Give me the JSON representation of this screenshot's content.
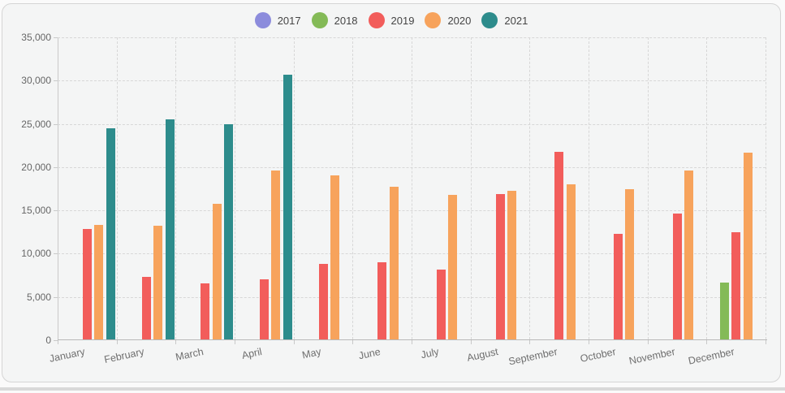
{
  "legend": {
    "items": [
      {
        "label": "2017",
        "color": "#8c8cdc"
      },
      {
        "label": "2018",
        "color": "#84ba57"
      },
      {
        "label": "2019",
        "color": "#f25d5b"
      },
      {
        "label": "2020",
        "color": "#f7a35c"
      },
      {
        "label": "2021",
        "color": "#2d8c8c"
      }
    ]
  },
  "chart_data": {
    "type": "bar",
    "categories": [
      "January",
      "February",
      "March",
      "April",
      "May",
      "June",
      "July",
      "August",
      "September",
      "October",
      "November",
      "December"
    ],
    "series": [
      {
        "name": "2017",
        "color": "#8c8cdc",
        "values": [
          null,
          null,
          null,
          null,
          null,
          null,
          null,
          null,
          null,
          null,
          null,
          null
        ]
      },
      {
        "name": "2018",
        "color": "#84ba57",
        "values": [
          null,
          null,
          null,
          null,
          null,
          null,
          null,
          null,
          null,
          null,
          null,
          6600
        ]
      },
      {
        "name": "2019",
        "color": "#f25d5b",
        "values": [
          12800,
          7200,
          6500,
          6900,
          8700,
          8900,
          8100,
          16800,
          21700,
          12200,
          14500,
          12400
        ]
      },
      {
        "name": "2020",
        "color": "#f7a35c",
        "values": [
          13200,
          13100,
          15700,
          19500,
          19000,
          17600,
          16700,
          17200,
          17900,
          17400,
          19500,
          21600
        ]
      },
      {
        "name": "2021",
        "color": "#2d8c8c",
        "values": [
          24400,
          25400,
          24900,
          30600,
          null,
          null,
          null,
          null,
          null,
          null,
          null,
          null
        ]
      }
    ],
    "title": "",
    "xlabel": "",
    "ylabel": "",
    "ylim": [
      0,
      35000
    ],
    "ytick_step": 5000,
    "ytick_labels": [
      "0",
      "5,000",
      "10,000",
      "15,000",
      "20,000",
      "25,000",
      "30,000",
      "35,000"
    ],
    "grid": "dashed",
    "legend_position": "top-center"
  }
}
